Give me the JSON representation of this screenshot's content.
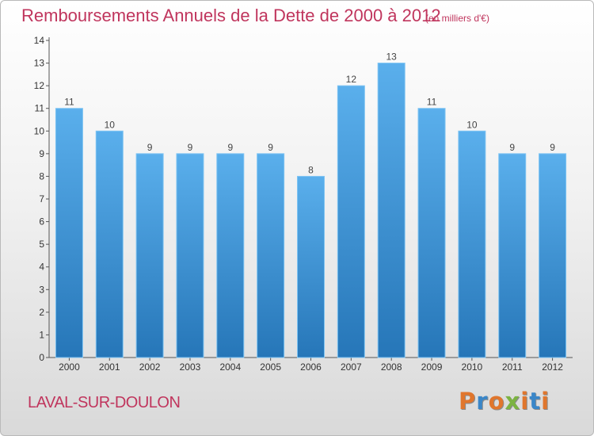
{
  "header": {
    "title": "Remboursements Annuels de la Dette de 2000 à 2012",
    "subtitle": "(en milliers d'€)"
  },
  "footer": {
    "town": "LAVAL-SUR-DOULON",
    "logo": [
      "P",
      "r",
      "o",
      "x",
      "i",
      "t",
      "i"
    ]
  },
  "colors": {
    "title": "#c0355d",
    "bar_top": "#5aafec",
    "bar_bottom": "#2676b8",
    "logo": [
      "#e0762d",
      "#3a86c8",
      "#e0762d",
      "#7cb342",
      "#e0762d",
      "#3a86c8",
      "#e0762d"
    ]
  },
  "chart_data": {
    "type": "bar",
    "title": "Remboursements Annuels de la Dette de 2000 à 2012",
    "subtitle": "(en milliers d'€)",
    "categories": [
      "2000",
      "2001",
      "2002",
      "2003",
      "2004",
      "2005",
      "2006",
      "2007",
      "2008",
      "2009",
      "2010",
      "2011",
      "2012"
    ],
    "values": [
      11,
      10,
      9,
      9,
      9,
      9,
      8,
      12,
      13,
      11,
      10,
      9,
      9
    ],
    "value_labels": [
      "11",
      "10",
      "9",
      "9",
      "9",
      "9",
      "8",
      "12",
      "13",
      "11",
      "10",
      "9",
      "9"
    ],
    "xlabel": "",
    "ylabel": "",
    "ylim": [
      0,
      14
    ],
    "yticks": [
      0,
      1,
      2,
      3,
      4,
      5,
      6,
      7,
      8,
      9,
      10,
      11,
      12,
      13,
      14
    ],
    "grid": false,
    "legend": "none"
  }
}
